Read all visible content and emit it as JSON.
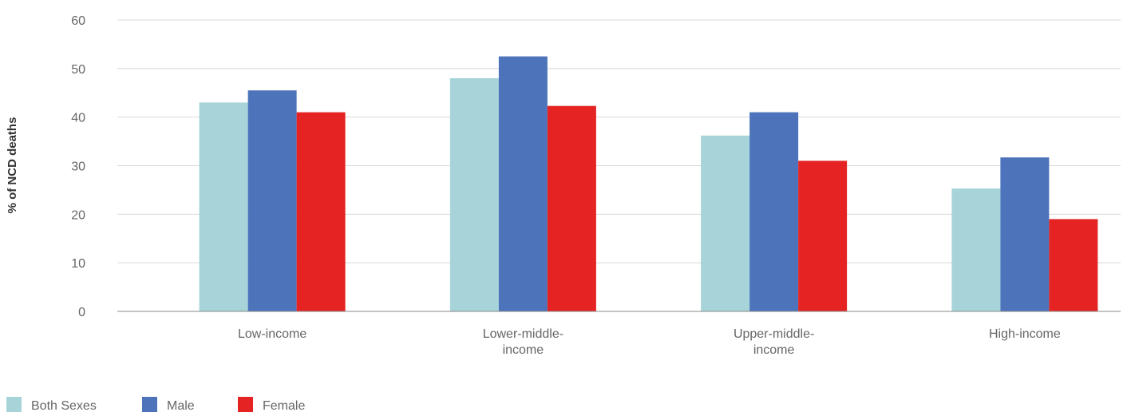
{
  "chart_data": {
    "type": "bar",
    "ylabel": "% of NCD deaths",
    "xlabel": "",
    "ylim": [
      0,
      60
    ],
    "yticks": [
      "0",
      "10",
      "20",
      "30",
      "40",
      "50",
      "60"
    ],
    "categories": [
      [
        "Low-income"
      ],
      [
        "Lower-middle-",
        "income"
      ],
      [
        "Upper-middle-",
        "income"
      ],
      [
        "High-income"
      ]
    ],
    "series": [
      {
        "name": "Both Sexes",
        "color": "#a7d4d9",
        "values": [
          43,
          48,
          36.2,
          25.3
        ]
      },
      {
        "name": "Male",
        "color": "#4d74ba",
        "values": [
          45.5,
          52.5,
          41,
          31.7
        ]
      },
      {
        "name": "Female",
        "color": "#e42322",
        "values": [
          41,
          42.3,
          31,
          19
        ]
      }
    ],
    "grid": true,
    "legend_position": "bottom-left"
  }
}
